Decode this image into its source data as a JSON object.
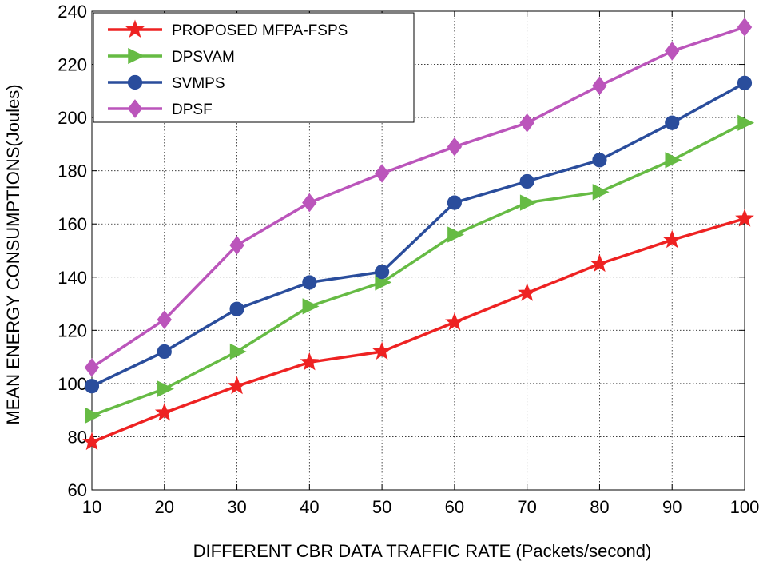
{
  "chart_data": {
    "type": "line",
    "title": "",
    "xlabel": "DIFFERENT CBR DATA TRAFFIC RATE (Packets/second)",
    "ylabel": "MEAN ENERGY CONSUMPTIONS(Joules)",
    "x": [
      10,
      20,
      30,
      40,
      50,
      60,
      70,
      80,
      90,
      100
    ],
    "xlim": [
      10,
      100
    ],
    "ylim": [
      60,
      240
    ],
    "xticks": [
      10,
      20,
      30,
      40,
      50,
      60,
      70,
      80,
      90,
      100
    ],
    "yticks": [
      60,
      80,
      100,
      120,
      140,
      160,
      180,
      200,
      220,
      240
    ],
    "grid": true,
    "legend_position": "top-left",
    "series": [
      {
        "name": "PROPOSED MFPA-FSPS",
        "color": "#ee2222",
        "marker": "star",
        "values": [
          78,
          89,
          99,
          108,
          112,
          123,
          134,
          145,
          154,
          162
        ]
      },
      {
        "name": "DPSVAM",
        "color": "#66bb44",
        "marker": "triangle-right",
        "values": [
          88,
          98,
          112,
          129,
          138,
          156,
          168,
          172,
          184,
          198
        ]
      },
      {
        "name": "SVMPS",
        "color": "#2a4d9c",
        "marker": "circle",
        "values": [
          99,
          112,
          128,
          138,
          142,
          168,
          176,
          184,
          198,
          213
        ]
      },
      {
        "name": "DPSF",
        "color": "#bb55bb",
        "marker": "diamond",
        "values": [
          106,
          124,
          152,
          168,
          179,
          189,
          198,
          212,
          225,
          234
        ]
      }
    ]
  }
}
